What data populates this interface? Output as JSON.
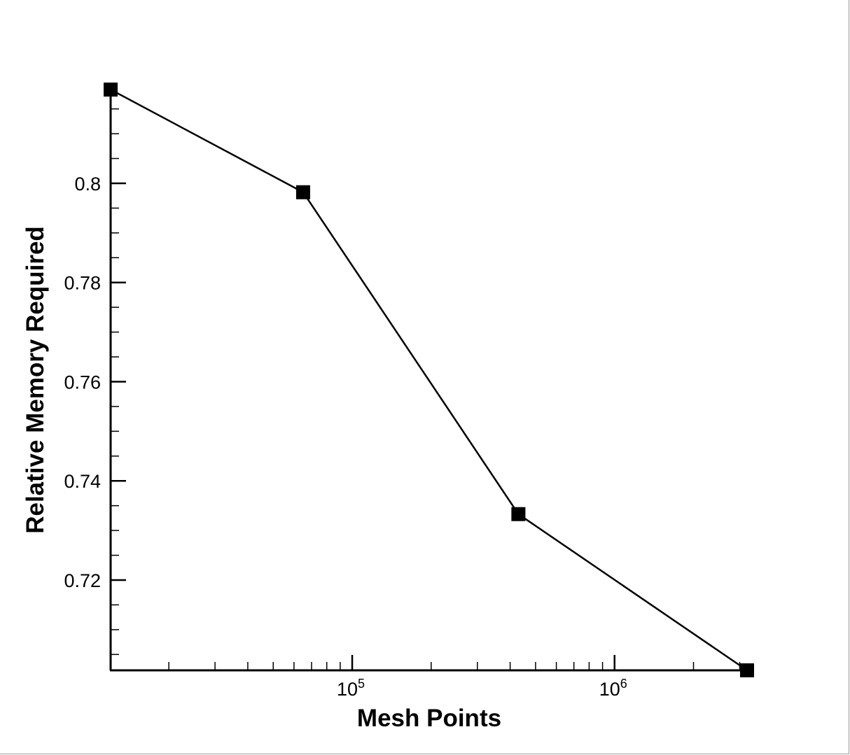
{
  "chart_data": {
    "type": "line",
    "title": "",
    "xlabel": "Mesh Points",
    "ylabel": "Relative Memory Required",
    "x_scale": "log",
    "xlim": [
      12000,
      3200000
    ],
    "ylim": [
      0.7018,
      0.8189
    ],
    "x_ticks": [
      {
        "base": "10",
        "exp": "5",
        "value": 100000
      },
      {
        "base": "10",
        "exp": "6",
        "value": 1000000
      }
    ],
    "y_ticks": [
      {
        "label": "0.72",
        "value": 0.72
      },
      {
        "label": "0.74",
        "value": 0.74
      },
      {
        "label": "0.76",
        "value": 0.76
      },
      {
        "label": "0.78",
        "value": 0.78
      },
      {
        "label": "0.8",
        "value": 0.8
      }
    ],
    "series": [
      {
        "x": [
          12000,
          65000,
          430000,
          3200000
        ],
        "y": [
          0.8189,
          0.7982,
          0.7333,
          0.7018
        ],
        "color": "#000000",
        "marker": "square"
      }
    ],
    "grid": false,
    "legend": "none"
  }
}
